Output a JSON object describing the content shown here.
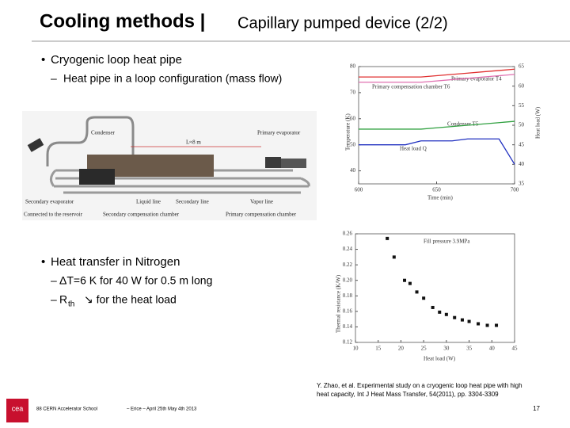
{
  "header": {
    "title": "Cooling methods |",
    "subtitle": "Capillary pumped device (2/2)"
  },
  "bullets": [
    {
      "text": "Cryogenic loop heat pipe",
      "subs": [
        "Heat pipe in a loop configuration (mass flow)"
      ]
    },
    {
      "text": "Heat transfer in Nitrogen",
      "subs": [
        "ΔT=6 K for 40 W for 0.5 m long"
      ],
      "rth": {
        "prefix": "R",
        "sub": "th",
        "suffix": "↘  for the heat load"
      }
    }
  ],
  "photo": {
    "labels": [
      "Condenser",
      "Primary evaporator",
      "L≈8 m",
      "Secondary evaporator",
      "Liquid line",
      "Secondary line",
      "Vapor line",
      "Connected to the reservoir",
      "Secondary compensation chamber",
      "Primary compensation chamber"
    ]
  },
  "figures": {
    "temperature": {
      "type": "line",
      "x": [
        600,
        610,
        620,
        630,
        640,
        650,
        660,
        670,
        680,
        690,
        700
      ],
      "xlim": [
        600,
        700
      ],
      "xticks": [
        600,
        650,
        700
      ],
      "ylim": [
        35,
        80
      ],
      "yticks": [
        40,
        50,
        60,
        70,
        80
      ],
      "y2lim": [
        35,
        65
      ],
      "y2ticks": [
        35,
        40,
        45,
        50,
        55,
        60,
        65
      ],
      "xlabel": "Time (min)",
      "ylabel": "Temperature (K)",
      "y2label": "Heat load (W)",
      "series": [
        {
          "name": "Primary evaporator T4",
          "color": "#e03030",
          "values": [
            76,
            76,
            76,
            76,
            76,
            76.5,
            77,
            77.5,
            78,
            78.5,
            79
          ]
        },
        {
          "name": "Primary compensation chamber T6",
          "color": "#e070b0",
          "values": [
            74,
            74,
            74,
            74,
            74,
            74.5,
            75,
            75.5,
            76,
            76.5,
            77
          ]
        },
        {
          "name": "Condenser T5",
          "color": "#30a040",
          "values": [
            56,
            56,
            56,
            56,
            56,
            56.5,
            57,
            57.5,
            58,
            58.5,
            59
          ]
        },
        {
          "name": "Heat load Q",
          "color": "#2030c0",
          "axis": "y2",
          "values": [
            45,
            45,
            45,
            45,
            46,
            46,
            46,
            46.5,
            46.5,
            46.5,
            40
          ]
        }
      ]
    },
    "resistance": {
      "type": "scatter",
      "x": [
        17,
        18.5,
        20.8,
        22,
        23.5,
        25,
        27,
        28.5,
        30,
        31.8,
        33.5,
        35,
        37,
        39,
        41
      ],
      "values": [
        0.254,
        0.23,
        0.2,
        0.196,
        0.185,
        0.177,
        0.165,
        0.159,
        0.156,
        0.152,
        0.149,
        0.147,
        0.144,
        0.142,
        0.142
      ],
      "color": "#111111",
      "annotation": "Fill pressure 3.9MPa",
      "xlim": [
        10,
        45
      ],
      "xticks": [
        10,
        15,
        20,
        25,
        30,
        35,
        40,
        45
      ],
      "ylim": [
        0.12,
        0.26
      ],
      "yticks": [
        0.12,
        0.14,
        0.16,
        0.18,
        {
          "value": 0.2,
          "label": "0.20"
        },
        0.22,
        0.24,
        0.26
      ],
      "xlabel": "Heat load (W)",
      "ylabel": "Thermal resistance (K/W)"
    }
  },
  "footer": {
    "reference": [
      "Y. Zhao, et al. Experimental study on a cryogenic loop heat pipe with high",
      "heat capacity, Int J Heat Mass Transfer, 54(2011), pp. 3304-3309"
    ],
    "school": "88  CERN Accelerator School",
    "event": "– Erice – April 25th May 4th 2013",
    "page": "17",
    "logo": "cea"
  }
}
